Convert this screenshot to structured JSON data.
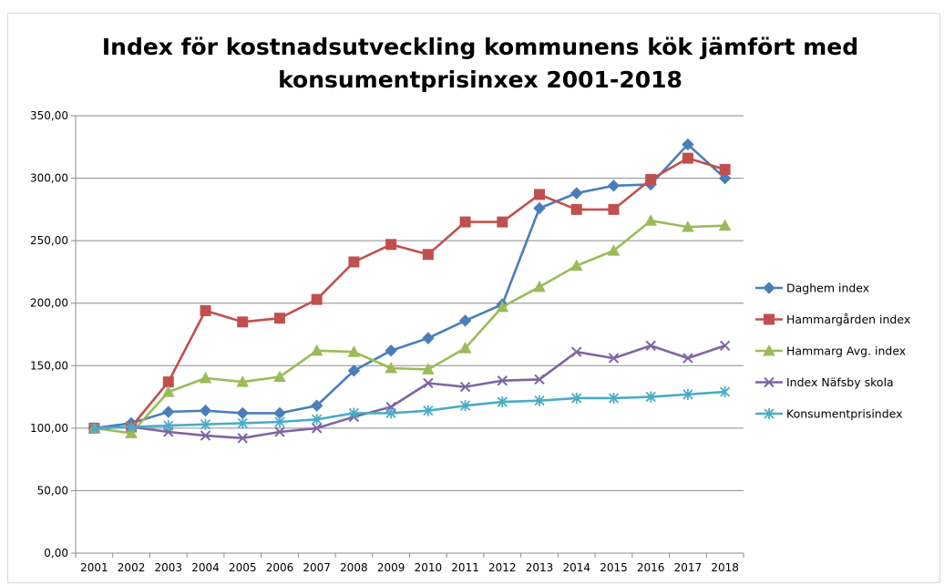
{
  "chart_data": {
    "type": "line",
    "title": [
      "Index för kostnadsutveckling kommunens kök jämfört med",
      "konsumentprisinxex 2001-2018"
    ],
    "xlabel": "",
    "ylabel": "",
    "x": [
      "2001",
      "2002",
      "2003",
      "2004",
      "2005",
      "2006",
      "2007",
      "2008",
      "2009",
      "2010",
      "2011",
      "2012",
      "2013",
      "2014",
      "2015",
      "2016",
      "2017",
      "2018"
    ],
    "ylim": [
      0,
      350
    ],
    "yticks": [
      "0,00",
      "50,00",
      "100,00",
      "150,00",
      "200,00",
      "250,00",
      "300,00",
      "350,00"
    ],
    "ytick_values": [
      0,
      50,
      100,
      150,
      200,
      250,
      300,
      350
    ],
    "grid": true,
    "legend_position": "right",
    "series": [
      {
        "name": "Daghem index",
        "color": "#4a7ebb",
        "marker": "diamond",
        "values": [
          100,
          104,
          113,
          114,
          112,
          112,
          118,
          146,
          162,
          172,
          186,
          199,
          276,
          288,
          294,
          295,
          327,
          300
        ]
      },
      {
        "name": "Hammargården index",
        "color": "#c0504d",
        "marker": "square",
        "values": [
          100,
          101,
          137,
          194,
          185,
          188,
          203,
          233,
          247,
          239,
          265,
          265,
          287,
          275,
          275,
          299,
          316,
          307
        ]
      },
      {
        "name": "Hammarg Avg. index",
        "color": "#9bbb59",
        "marker": "triangle",
        "values": [
          100,
          96,
          129,
          140,
          137,
          141,
          162,
          161,
          148,
          147,
          164,
          197,
          213,
          230,
          242,
          266,
          261,
          262
        ]
      },
      {
        "name": "Index Näfsby skola",
        "color": "#8064a2",
        "marker": "x",
        "values": [
          100,
          101,
          97,
          94,
          92,
          97,
          100,
          109,
          117,
          136,
          133,
          138,
          139,
          161,
          156,
          166,
          156,
          166
        ]
      },
      {
        "name": "Konsumentprisindex",
        "color": "#4bacc6",
        "marker": "star",
        "values": [
          100,
          101,
          102,
          103,
          104,
          105,
          107,
          112,
          112,
          114,
          118,
          121,
          122,
          124,
          124,
          125,
          127,
          129
        ]
      }
    ]
  }
}
